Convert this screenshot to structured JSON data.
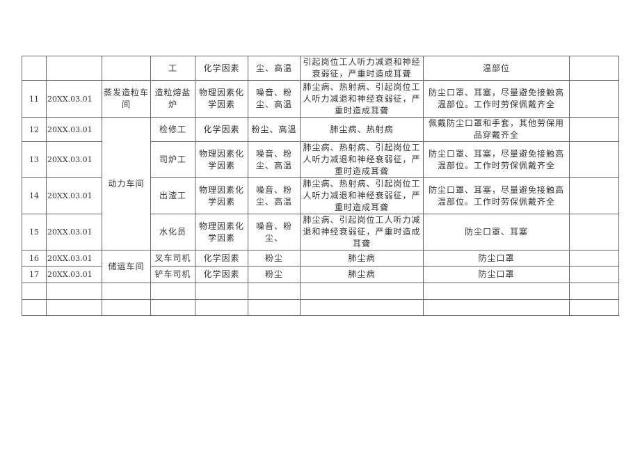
{
  "rows": [
    {
      "no": "",
      "date": "",
      "workshop": "",
      "post": "工",
      "factor": "化学因素",
      "hazard": "尘、高温",
      "disease": "引起岗位工人听力减退和神经\n衰弱征，严重时造成耳聋",
      "protection": "温部位",
      "remark": ""
    },
    {
      "no": "11",
      "date": "20XX.03.01",
      "workshop": "蒸发造粒车\n间",
      "post": "造粒熔盐\n炉",
      "factor": "物理因素化\n学因素",
      "hazard": "噪音、粉\n尘、高温",
      "disease": "肺尘病、热射病、引起岗位工\n人听力减退和神经衰弱征，严\n重时造成耳聋",
      "protection": "防尘口罩、耳塞，尽量避免接触高\n温部位。工作时劳保佩戴齐全",
      "remark": ""
    },
    {
      "no": "12",
      "date": "20XX.03.01",
      "workshop": "动力车间",
      "post": "检修工",
      "factor": "化学因素",
      "hazard": "粉尘、高温",
      "disease": "肺尘病、热射病",
      "protection": "佩戴防尘口罩和手套，其他劳保用\n品穿戴齐全",
      "remark": ""
    },
    {
      "no": "13",
      "date": "20XX.03.01",
      "post": "司炉工",
      "factor": "物理因素化\n学因素",
      "hazard": "噪音、粉\n尘、高温",
      "disease": "肺尘病、热射病、引起岗位工\n人听力减退和神经衰弱征，严\n重时造成耳聋",
      "protection": "防尘口罩、耳塞，尽量避免接触高\n温部位。工作时劳保佩戴齐全",
      "remark": ""
    },
    {
      "no": "14",
      "date": "20XX.03.01",
      "post": "出渣工",
      "factor": "物理因素化\n学因素",
      "hazard": "噪音、粉\n尘、高温",
      "disease": "肺尘病、热射病、引起岗位工\n人听力减退和神经衰弱征，严\n重时造成耳聋",
      "protection": "防尘口罩、耳塞，尽量避免接触高\n温部位。工作时劳保佩戴齐全",
      "remark": ""
    },
    {
      "no": "15",
      "date": "20XX.03.01",
      "post": "水化员",
      "factor": "物理因素化\n学因素",
      "hazard": "噪音、粉尘、",
      "disease": "肺尘病、引起岗位工人听力减\n退和神经衰弱征，严重时造成\n耳聋",
      "protection": "防尘口罩、耳塞",
      "remark": ""
    },
    {
      "no": "16",
      "date": "20XX.03.01",
      "workshop": "储运车间",
      "post": "叉车司机",
      "factor": "化学因素",
      "hazard": "粉尘",
      "disease": "肺尘病",
      "protection": "防尘口罩",
      "remark": ""
    },
    {
      "no": "17",
      "date": "20XX.03.01",
      "post": "铲车司机",
      "factor": "化学因素",
      "hazard": "粉尘",
      "disease": "肺尘病",
      "protection": "防尘口罩",
      "remark": ""
    }
  ]
}
